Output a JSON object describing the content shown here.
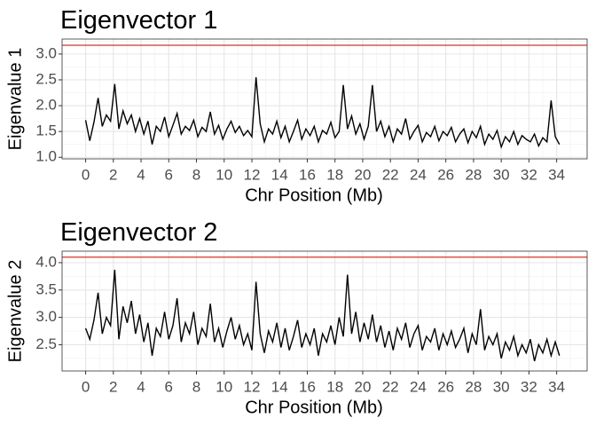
{
  "chart_data": [
    {
      "type": "line",
      "title": "Eigenvector 1",
      "xlabel": "Chr Position (Mb)",
      "ylabel": "Eigenvalue 1",
      "x": [
        0,
        0.3,
        0.6,
        0.9,
        1.2,
        1.5,
        1.8,
        2.1,
        2.4,
        2.7,
        3,
        3.3,
        3.6,
        3.9,
        4.2,
        4.5,
        4.8,
        5.1,
        5.4,
        5.7,
        6,
        6.3,
        6.6,
        6.9,
        7.2,
        7.5,
        7.8,
        8.1,
        8.4,
        8.7,
        9,
        9.3,
        9.6,
        9.9,
        10.2,
        10.5,
        10.8,
        11.1,
        11.4,
        11.7,
        12,
        12.3,
        12.6,
        12.9,
        13.2,
        13.5,
        13.8,
        14.1,
        14.4,
        14.7,
        15,
        15.3,
        15.6,
        15.9,
        16.2,
        16.5,
        16.8,
        17.1,
        17.4,
        17.7,
        18,
        18.3,
        18.6,
        18.9,
        19.2,
        19.5,
        19.8,
        20.1,
        20.4,
        20.7,
        21,
        21.3,
        21.6,
        21.9,
        22.2,
        22.5,
        22.8,
        23.1,
        23.4,
        23.7,
        24,
        24.3,
        24.6,
        24.9,
        25.2,
        25.5,
        25.8,
        26.1,
        26.4,
        26.7,
        27,
        27.3,
        27.6,
        27.9,
        28.2,
        28.5,
        28.8,
        29.1,
        29.4,
        29.7,
        30,
        30.3,
        30.6,
        30.9,
        31.2,
        31.5,
        31.8,
        32.1,
        32.4,
        32.7,
        33,
        33.3,
        33.6,
        33.9,
        34.2
      ],
      "series": [
        {
          "color": "#000000",
          "values": [
            1.72,
            1.32,
            1.68,
            2.15,
            1.6,
            1.82,
            1.7,
            2.42,
            1.55,
            1.9,
            1.65,
            1.82,
            1.5,
            1.75,
            1.45,
            1.7,
            1.25,
            1.6,
            1.5,
            1.78,
            1.4,
            1.62,
            1.85,
            1.45,
            1.6,
            1.52,
            1.72,
            1.4,
            1.58,
            1.5,
            1.88,
            1.45,
            1.62,
            1.35,
            1.55,
            1.7,
            1.48,
            1.6,
            1.42,
            1.52,
            1.4,
            2.55,
            1.65,
            1.3,
            1.55,
            1.45,
            1.7,
            1.38,
            1.6,
            1.3,
            1.5,
            1.72,
            1.35,
            1.55,
            1.42,
            1.6,
            1.3,
            1.52,
            1.45,
            1.68,
            1.38,
            1.5,
            2.4,
            1.55,
            1.8,
            1.45,
            1.65,
            1.35,
            1.6,
            2.4,
            1.5,
            1.7,
            1.4,
            1.6,
            1.3,
            1.55,
            1.45,
            1.75,
            1.35,
            1.5,
            1.62,
            1.3,
            1.48,
            1.4,
            1.6,
            1.32,
            1.5,
            1.42,
            1.58,
            1.3,
            1.45,
            1.55,
            1.28,
            1.5,
            1.38,
            1.6,
            1.25,
            1.45,
            1.35,
            1.52,
            1.2,
            1.4,
            1.3,
            1.5,
            1.25,
            1.42,
            1.35,
            1.3,
            1.45,
            1.22,
            1.38,
            1.3,
            2.1,
            1.4,
            1.25
          ]
        }
      ],
      "hline": 3.17,
      "hline_color": "#e0301e",
      "xlim": [
        -1.7,
        36.2
      ],
      "xticks": [
        0,
        2,
        4,
        6,
        8,
        10,
        12,
        14,
        16,
        18,
        20,
        22,
        24,
        26,
        28,
        30,
        32,
        34
      ],
      "minor_xticks": [
        1,
        3,
        5,
        7,
        9,
        11,
        13,
        15,
        17,
        19,
        21,
        23,
        25,
        27,
        29,
        31,
        33,
        35
      ],
      "ylim": [
        0.97,
        3.29
      ],
      "yticks": [
        {
          "value": 1,
          "label": "1.0"
        },
        1.5,
        {
          "value": 2,
          "label": "2.0"
        },
        2.5,
        {
          "value": 3,
          "label": "3.0"
        }
      ],
      "minor_yticks": [
        1.25,
        1.75,
        2.25,
        2.75,
        3.25
      ],
      "grid": true
    },
    {
      "type": "line",
      "title": "Eigenvector 2",
      "xlabel": "Chr Position (Mb)",
      "ylabel": "Eigenvalue 2",
      "x": [
        0,
        0.3,
        0.6,
        0.9,
        1.2,
        1.5,
        1.8,
        2.1,
        2.4,
        2.7,
        3,
        3.3,
        3.6,
        3.9,
        4.2,
        4.5,
        4.8,
        5.1,
        5.4,
        5.7,
        6,
        6.3,
        6.6,
        6.9,
        7.2,
        7.5,
        7.8,
        8.1,
        8.4,
        8.7,
        9,
        9.3,
        9.6,
        9.9,
        10.2,
        10.5,
        10.8,
        11.1,
        11.4,
        11.7,
        12,
        12.3,
        12.6,
        12.9,
        13.2,
        13.5,
        13.8,
        14.1,
        14.4,
        14.7,
        15,
        15.3,
        15.6,
        15.9,
        16.2,
        16.5,
        16.8,
        17.1,
        17.4,
        17.7,
        18,
        18.3,
        18.6,
        18.9,
        19.2,
        19.5,
        19.8,
        20.1,
        20.4,
        20.7,
        21,
        21.3,
        21.6,
        21.9,
        22.2,
        22.5,
        22.8,
        23.1,
        23.4,
        23.7,
        24,
        24.3,
        24.6,
        24.9,
        25.2,
        25.5,
        25.8,
        26.1,
        26.4,
        26.7,
        27,
        27.3,
        27.6,
        27.9,
        28.2,
        28.5,
        28.8,
        29.1,
        29.4,
        29.7,
        30,
        30.3,
        30.6,
        30.9,
        31.2,
        31.5,
        31.8,
        32.1,
        32.4,
        32.7,
        33,
        33.3,
        33.6,
        33.9,
        34.2
      ],
      "series": [
        {
          "color": "#000000",
          "values": [
            2.8,
            2.6,
            2.95,
            3.45,
            2.7,
            3.0,
            2.85,
            3.87,
            2.6,
            3.2,
            2.9,
            3.3,
            2.7,
            3.05,
            2.55,
            2.9,
            2.3,
            2.8,
            2.65,
            3.1,
            2.6,
            2.85,
            3.35,
            2.55,
            2.9,
            2.7,
            3.1,
            2.5,
            2.8,
            2.65,
            3.25,
            2.55,
            2.8,
            2.45,
            2.75,
            3.0,
            2.6,
            2.85,
            2.5,
            2.7,
            2.4,
            3.65,
            2.7,
            2.35,
            2.75,
            2.55,
            2.9,
            2.45,
            2.8,
            2.4,
            2.65,
            2.95,
            2.45,
            2.7,
            2.5,
            2.8,
            2.3,
            2.7,
            2.55,
            2.85,
            2.5,
            3.0,
            2.65,
            3.78,
            2.7,
            3.1,
            2.55,
            2.9,
            2.6,
            3.05,
            2.55,
            2.85,
            2.45,
            2.75,
            2.4,
            2.8,
            2.6,
            2.9,
            2.45,
            2.7,
            2.85,
            2.4,
            2.65,
            2.55,
            2.8,
            2.4,
            2.7,
            2.5,
            2.75,
            2.45,
            2.6,
            2.8,
            2.35,
            2.7,
            2.5,
            3.15,
            2.4,
            2.65,
            2.5,
            2.7,
            2.25,
            2.55,
            2.4,
            2.65,
            2.3,
            2.5,
            2.35,
            2.6,
            2.2,
            2.5,
            2.35,
            2.6,
            2.3,
            2.55,
            2.3
          ]
        }
      ],
      "hline": 4.1,
      "hline_color": "#e0301e",
      "xlim": [
        -1.7,
        36.2
      ],
      "xticks": [
        0,
        2,
        4,
        6,
        8,
        10,
        12,
        14,
        16,
        18,
        20,
        22,
        24,
        26,
        28,
        30,
        32,
        34
      ],
      "minor_xticks": [
        1,
        3,
        5,
        7,
        9,
        11,
        13,
        15,
        17,
        19,
        21,
        23,
        25,
        27,
        29,
        31,
        33,
        35
      ],
      "ylim": [
        2.02,
        4.21
      ],
      "yticks": [
        2.5,
        {
          "value": 3,
          "label": "3.0"
        },
        3.5,
        {
          "value": 4,
          "label": "4.0"
        }
      ],
      "minor_yticks": [
        2.25,
        2.75,
        3.25,
        3.75
      ],
      "grid": true
    }
  ]
}
